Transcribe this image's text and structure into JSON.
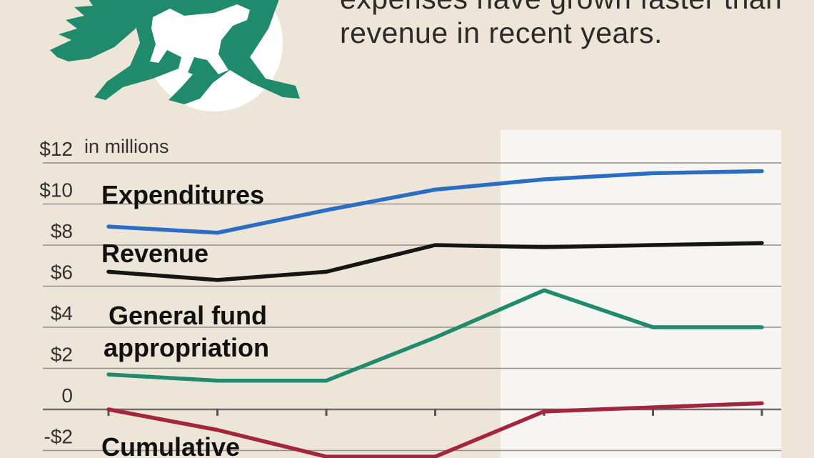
{
  "headline": {
    "line1": "expenses have grown faster than",
    "line2": "revenue in recent years."
  },
  "colors": {
    "background": "#ede5d7",
    "highlight": "#f7f5f1",
    "grid": "#8f8f8f",
    "logo": "#1f8a6c",
    "logo_circle": "#ffffff"
  },
  "chart_data": {
    "type": "line",
    "unit_note": "in millions",
    "x": [
      0,
      1,
      2,
      3,
      4,
      5,
      6
    ],
    "ylim": [
      -2,
      12
    ],
    "y_ticks": [
      {
        "value": 12,
        "label": "$12"
      },
      {
        "value": 10,
        "label": "$10"
      },
      {
        "value": 8,
        "label": "$8"
      },
      {
        "value": 6,
        "label": "$6"
      },
      {
        "value": 4,
        "label": "$4"
      },
      {
        "value": 2,
        "label": "$2"
      },
      {
        "value": 0,
        "label": "0"
      },
      {
        "value": -2,
        "label": "-$2"
      }
    ],
    "grid": true,
    "highlight_from_index": 3.6,
    "series": [
      {
        "name": "Expenditures",
        "color": "#2a6ec4",
        "values": [
          8.9,
          8.6,
          9.7,
          10.7,
          11.2,
          11.5,
          11.6
        ]
      },
      {
        "name": "Revenue",
        "color": "#151515",
        "values": [
          6.7,
          6.3,
          6.7,
          8.0,
          7.9,
          8.0,
          8.1
        ]
      },
      {
        "name": "General fund appropriation",
        "label_lines": [
          "General fund",
          "appropriation"
        ],
        "color": "#1f8a6c",
        "values": [
          1.7,
          1.4,
          1.4,
          3.5,
          5.8,
          4.0,
          4.0
        ]
      },
      {
        "name": "Cumulative",
        "color": "#a3263f",
        "values": [
          0.0,
          -1.0,
          -2.3,
          -2.3,
          -0.1,
          0.1,
          0.3
        ]
      }
    ]
  }
}
